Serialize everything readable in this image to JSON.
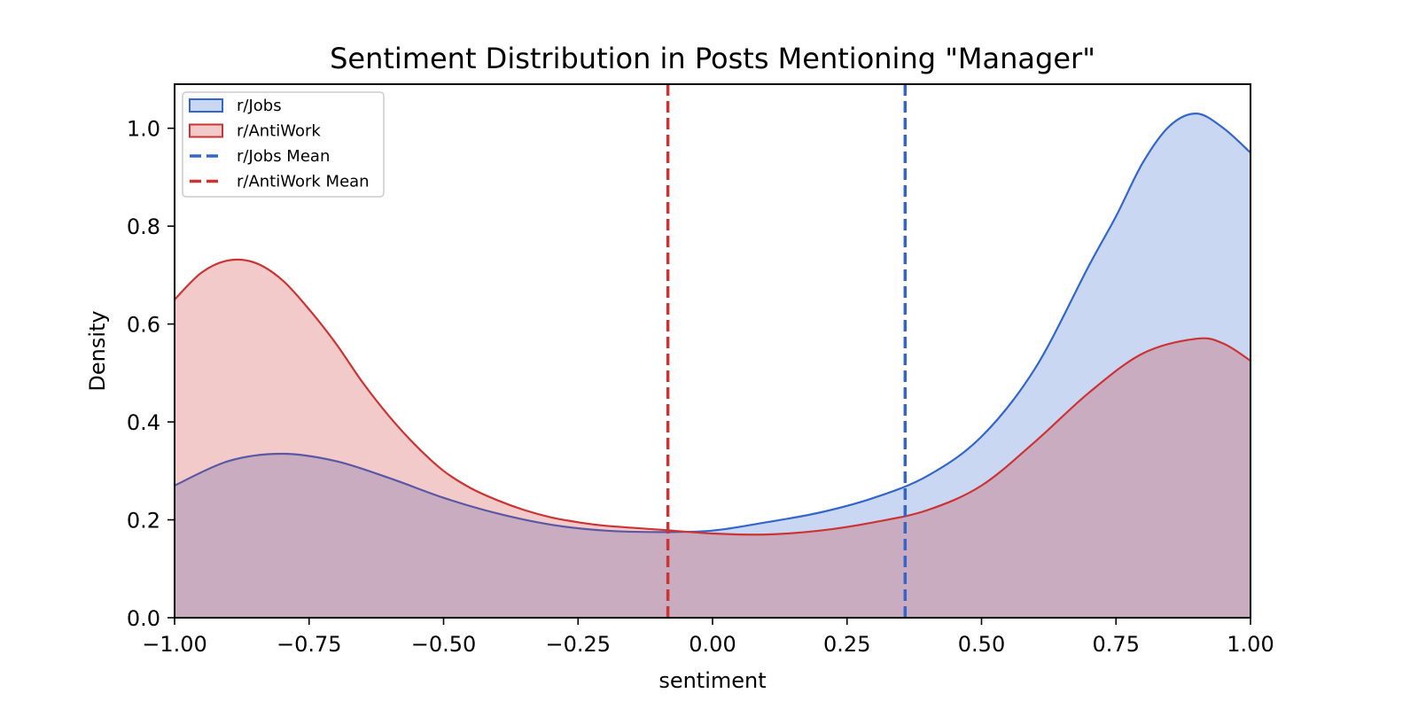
{
  "chart_data": {
    "type": "area",
    "title": "Sentiment Distribution in Posts Mentioning \"Manager\"",
    "xlabel": "sentiment",
    "ylabel": "Density",
    "xlim": [
      -1.0,
      1.0
    ],
    "ylim": [
      0.0,
      1.09
    ],
    "x_ticks": [
      -1.0,
      -0.75,
      -0.5,
      -0.25,
      0.0,
      0.25,
      0.5,
      0.75,
      1.0
    ],
    "x_tick_labels": [
      "−1.00",
      "−0.75",
      "−0.50",
      "−0.25",
      "0.00",
      "0.25",
      "0.50",
      "0.75",
      "1.00"
    ],
    "y_ticks": [
      0.0,
      0.2,
      0.4,
      0.6,
      0.8,
      1.0
    ],
    "y_tick_labels": [
      "0.0",
      "0.2",
      "0.4",
      "0.6",
      "0.8",
      "1.0"
    ],
    "grid": false,
    "legend_position": "top-left",
    "legend": [
      "r/Jobs",
      "r/AntiWork",
      "r/Jobs Mean",
      "r/AntiWork Mean"
    ],
    "series": [
      {
        "name": "r/Jobs",
        "color": "#3366cc",
        "fill": "#c9d7f1",
        "x": [
          -1.0,
          -0.9,
          -0.8,
          -0.7,
          -0.6,
          -0.5,
          -0.4,
          -0.3,
          -0.2,
          -0.1,
          0.0,
          0.1,
          0.2,
          0.3,
          0.4,
          0.5,
          0.6,
          0.7,
          0.75,
          0.8,
          0.85,
          0.9,
          0.95,
          1.0
        ],
        "y": [
          0.27,
          0.32,
          0.335,
          0.32,
          0.285,
          0.245,
          0.213,
          0.19,
          0.178,
          0.175,
          0.178,
          0.195,
          0.215,
          0.245,
          0.29,
          0.37,
          0.51,
          0.72,
          0.82,
          0.93,
          1.005,
          1.03,
          1.0,
          0.95
        ]
      },
      {
        "name": "r/AntiWork",
        "color": "#cc3333",
        "fill": "#f1c9c9",
        "x": [
          -1.0,
          -0.95,
          -0.9,
          -0.85,
          -0.8,
          -0.75,
          -0.7,
          -0.65,
          -0.6,
          -0.55,
          -0.5,
          -0.45,
          -0.4,
          -0.35,
          -0.3,
          -0.25,
          -0.2,
          -0.1,
          0.0,
          0.1,
          0.2,
          0.3,
          0.4,
          0.5,
          0.6,
          0.7,
          0.8,
          0.9,
          0.95,
          1.0
        ],
        "y": [
          0.65,
          0.705,
          0.73,
          0.725,
          0.69,
          0.63,
          0.56,
          0.48,
          0.41,
          0.35,
          0.3,
          0.265,
          0.24,
          0.22,
          0.205,
          0.195,
          0.188,
          0.18,
          0.172,
          0.17,
          0.178,
          0.195,
          0.22,
          0.27,
          0.36,
          0.46,
          0.54,
          0.57,
          0.56,
          0.525
        ]
      }
    ],
    "vlines": [
      {
        "name": "r/Jobs Mean",
        "x": 0.358,
        "color": "#3366cc",
        "style": "dashed"
      },
      {
        "name": "r/AntiWork Mean",
        "x": -0.083,
        "color": "#cc3333",
        "style": "dashed"
      }
    ]
  }
}
